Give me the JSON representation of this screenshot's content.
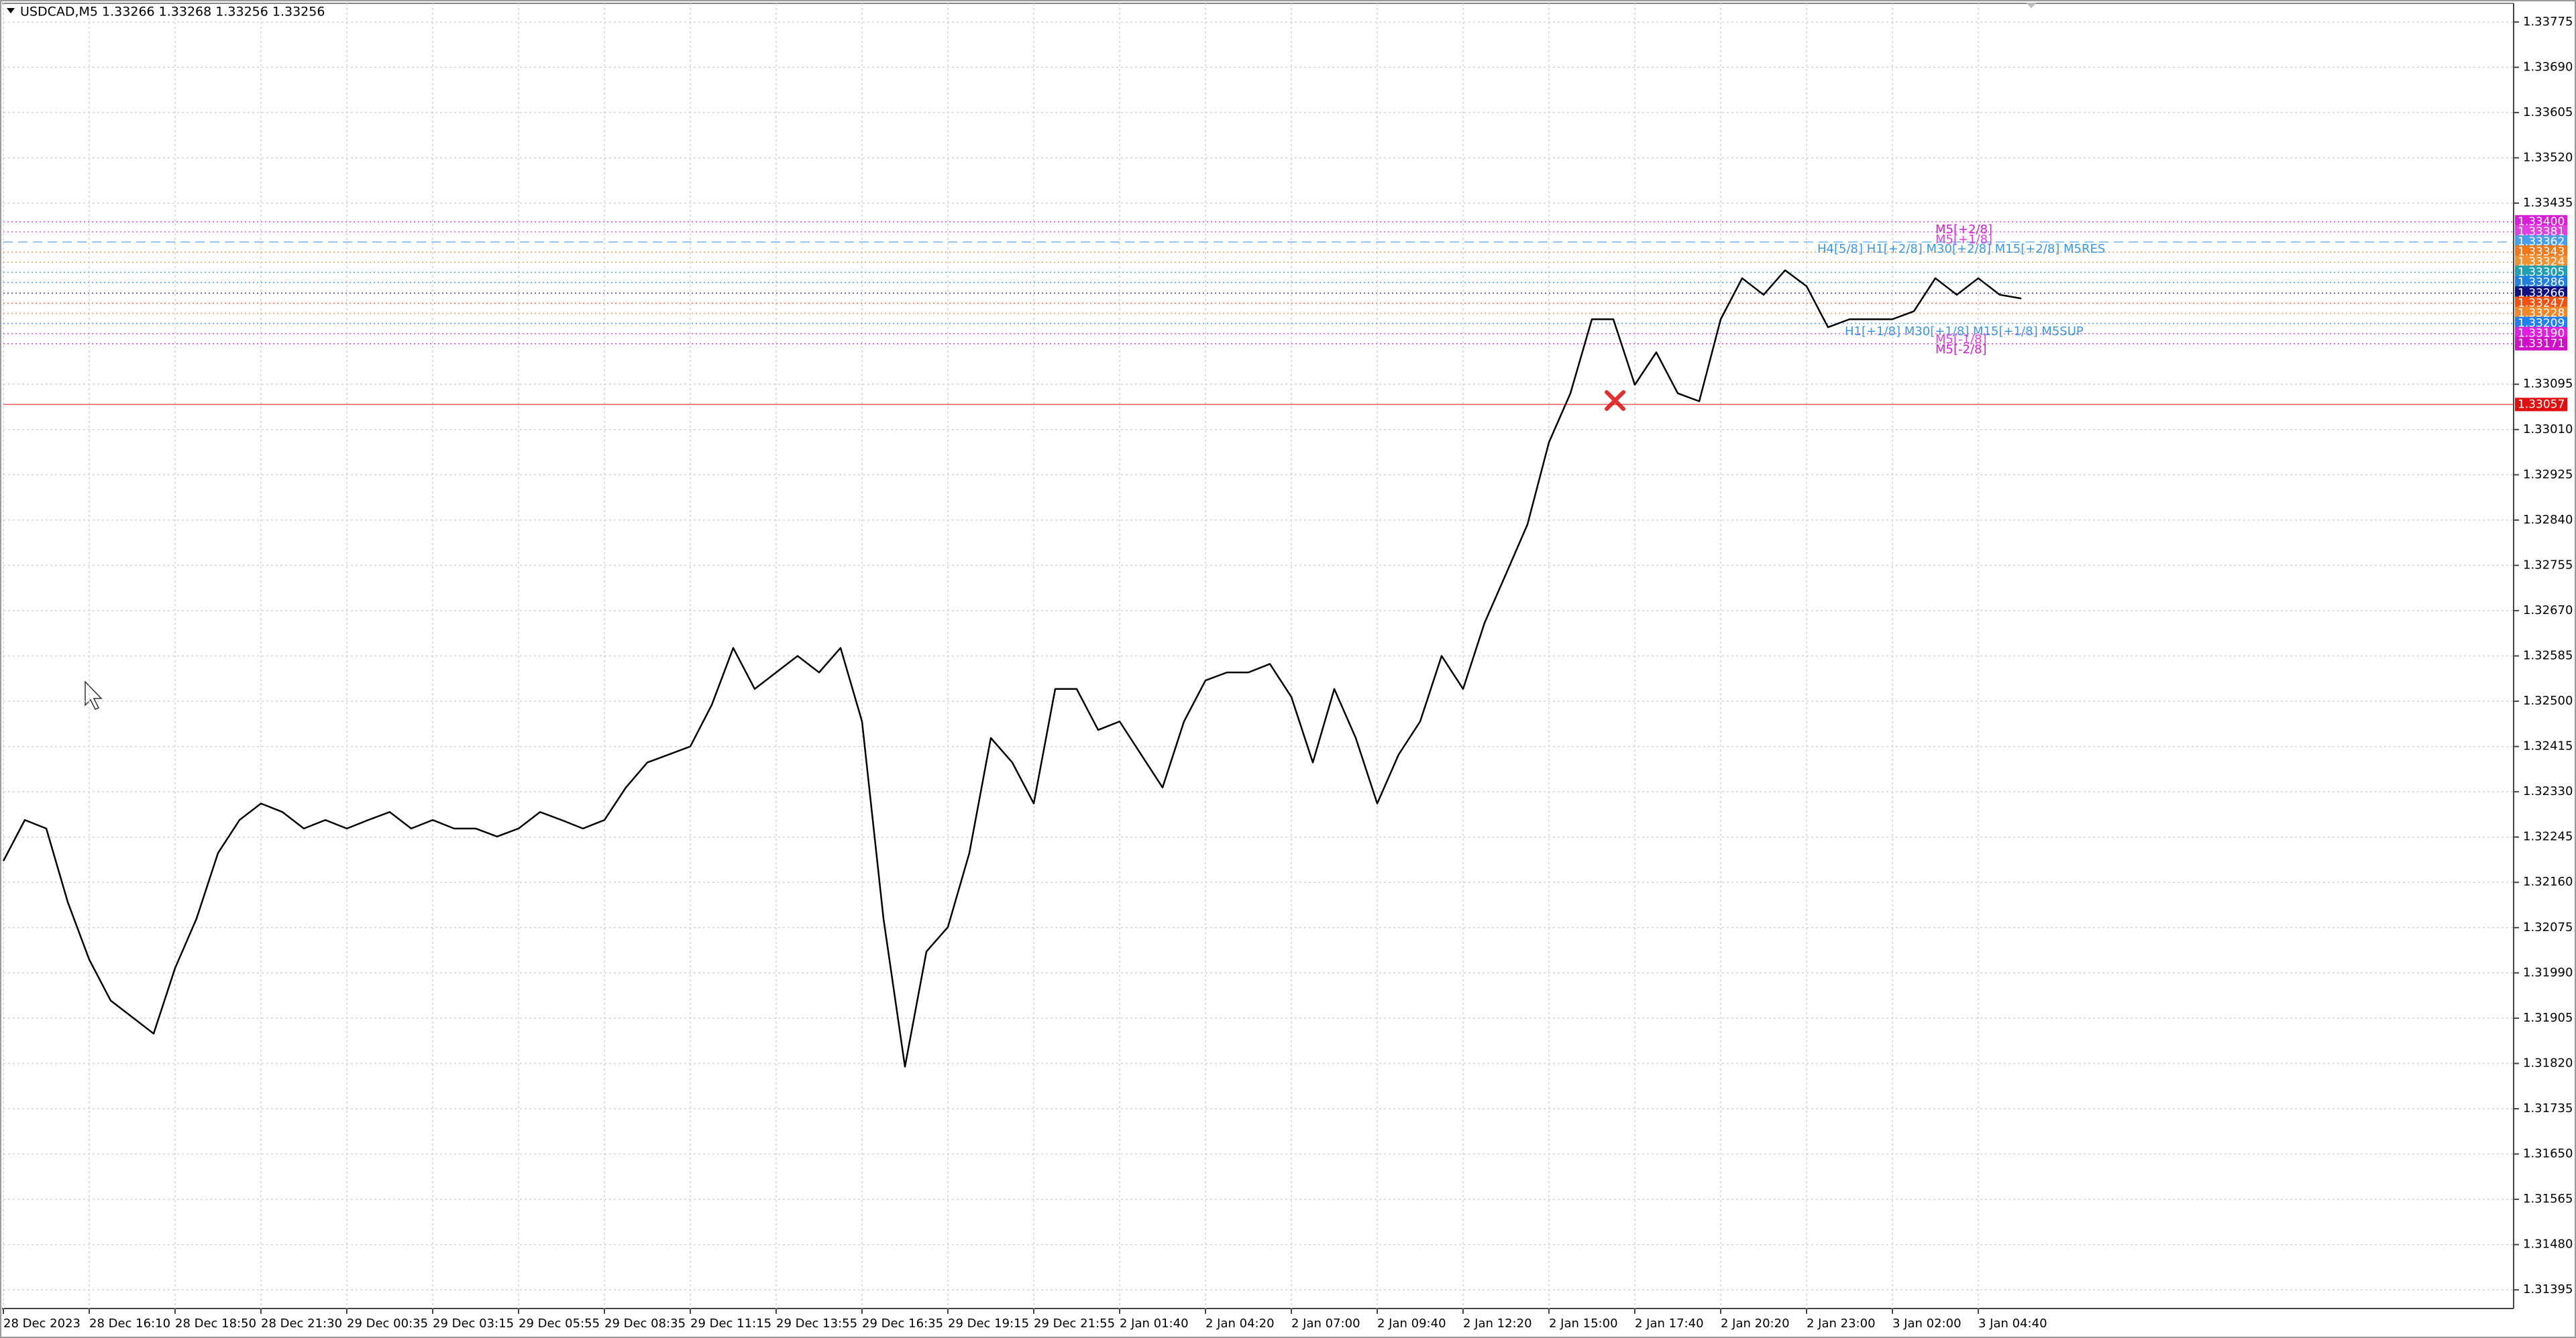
{
  "chart_data": {
    "type": "line",
    "title": "USDCAD,M5  1.33266 1.33268 1.33256 1.33256",
    "categories": [
      "28 Dec 2023",
      null,
      null,
      null,
      "28 Dec 16:10",
      null,
      null,
      null,
      "28 Dec 18:50",
      null,
      null,
      null,
      "28 Dec 21:30",
      null,
      null,
      null,
      "29 Dec 00:35",
      null,
      null,
      null,
      "29 Dec 03:15",
      null,
      null,
      null,
      "29 Dec 05:55",
      null,
      null,
      null,
      "29 Dec 08:35",
      null,
      null,
      null,
      "29 Dec 11:15",
      null,
      null,
      null,
      "29 Dec 13:55",
      null,
      null,
      null,
      "29 Dec 16:35",
      null,
      null,
      null,
      "29 Dec 19:15",
      null,
      null,
      null,
      "29 Dec 21:55",
      null,
      null,
      null,
      "2 Jan 01:40",
      null,
      null,
      null,
      "2 Jan 04:20",
      null,
      null,
      null,
      "2 Jan 07:00",
      null,
      null,
      null,
      "2 Jan 09:40",
      null,
      null,
      null,
      "2 Jan 12:20",
      null,
      null,
      null,
      "2 Jan 15:00",
      null,
      null,
      null,
      "2 Jan 17:40",
      null,
      null,
      null,
      "2 Jan 20:20",
      null,
      null,
      null,
      "2 Jan 23:00",
      null,
      null,
      null,
      "3 Jan 02:00",
      null,
      null,
      null,
      "3 Jan 04:40",
      null,
      null
    ],
    "series": [
      {
        "name": "USDCAD",
        "color": "#000000",
        "values": [
          1.322,
          1.32277,
          1.32261,
          1.32123,
          1.32015,
          1.31938,
          1.31907,
          1.31876,
          1.31999,
          1.32092,
          1.32215,
          1.32277,
          1.32308,
          1.32292,
          1.32261,
          1.32277,
          1.32261,
          1.32277,
          1.32292,
          1.32261,
          1.32277,
          1.32261,
          1.32261,
          1.32246,
          1.32261,
          1.32292,
          1.32277,
          1.32261,
          1.32277,
          1.32338,
          1.32385,
          1.324,
          1.32415,
          1.32493,
          1.326,
          1.32523,
          1.32554,
          1.32585,
          1.32554,
          1.326,
          1.32462,
          1.32092,
          1.31814,
          1.3203,
          1.32076,
          1.32215,
          1.32431,
          1.32385,
          1.32308,
          1.32523,
          1.32523,
          1.32446,
          1.32462,
          1.324,
          1.32338,
          1.32462,
          1.32539,
          1.32554,
          1.32554,
          1.3257,
          1.32508,
          1.32385,
          1.32523,
          1.32431,
          1.32308,
          1.324,
          1.32462,
          1.32585,
          1.32523,
          1.32647,
          1.32739,
          1.32832,
          1.32986,
          1.33078,
          1.33217,
          1.33217,
          1.33094,
          1.33155,
          1.33078,
          1.33063,
          1.33217,
          1.33294,
          1.33263,
          1.33309,
          1.33279,
          1.33202,
          1.33217,
          1.33217,
          1.33217,
          1.33232,
          1.33294,
          1.33263,
          1.33294,
          1.33263,
          1.33256
        ]
      }
    ],
    "ylim": [
      1.3136,
      1.3381
    ],
    "yticks": [
      1.33775,
      {
        "value": 1.3369,
        "label": "1.33690"
      },
      1.33605,
      {
        "value": 1.3352,
        "label": "1.33520"
      },
      1.33435,
      1.33095,
      {
        "value": 1.3301,
        "label": "1.33010"
      },
      1.32925,
      {
        "value": 1.3284,
        "label": "1.32840"
      },
      1.32755,
      {
        "value": 1.3267,
        "label": "1.32670"
      },
      1.32585,
      {
        "value": 1.325,
        "label": "1.32500"
      },
      1.32415,
      {
        "value": 1.3233,
        "label": "1.32330"
      },
      1.32245,
      {
        "value": 1.3216,
        "label": "1.32160"
      },
      1.32075,
      {
        "value": 1.3199,
        "label": "1.31990"
      },
      1.31905,
      {
        "value": 1.3182,
        "label": "1.31820"
      },
      1.31735,
      {
        "value": 1.3165,
        "label": "1.31650"
      },
      1.31565,
      {
        "value": 1.3148,
        "label": "1.31480"
      },
      1.31395
    ],
    "grid": true,
    "levels": [
      {
        "value": 1.334,
        "label": "1.33400",
        "color": "#d81fd8"
      },
      {
        "value": 1.33381,
        "label": "1.33381",
        "color": "#e040e0"
      },
      {
        "value": 1.33362,
        "label": "1.33362",
        "color": "#4aa0e8"
      },
      {
        "value": 1.33343,
        "label": "1.33343",
        "color": "#f07818"
      },
      {
        "value": 1.33324,
        "label": "1.33324",
        "color": "#f09030"
      },
      {
        "value": 1.33305,
        "label": "1.33305",
        "color": "#20a0b0"
      },
      {
        "value": 1.33286,
        "label": "1.33286",
        "color": "#2080e0"
      },
      {
        "value": 1.33266,
        "label": "1.33266",
        "color": "#101080"
      },
      {
        "value": 1.33247,
        "label": "1.33247",
        "color": "#f05010"
      },
      {
        "value": 1.33228,
        "label": "1.33228",
        "color": "#f08828"
      },
      {
        "value": 1.33209,
        "label": "1.33209",
        "color": "#2080f0"
      },
      {
        "value": 1.3319,
        "label": "1.33190",
        "color": "#e020e0"
      },
      {
        "value": 1.33171,
        "label": "1.33171",
        "color": "#d010c8"
      },
      {
        "value": 1.33057,
        "label": "1.33057",
        "color": "#e01010"
      }
    ],
    "annotations": [
      {
        "text": "M5[+2/8]",
        "color": "#d020d0"
      },
      {
        "text": "M5[+1/8]",
        "color": "#e040e0"
      },
      {
        "text": "H4[5/8] H1[+2/8] M30[+2/8] M15[+2/8] M5RES",
        "color": "#3a98e0"
      },
      {
        "text": "H1[+1/8] M30[+1/8] M15[+1/8] M5SUP",
        "color": "#3a98e0"
      },
      {
        "text": "M5[-1/8]",
        "color": "#e040e0"
      },
      {
        "text": "M5[-2/8]",
        "color": "#d020d0"
      }
    ]
  }
}
